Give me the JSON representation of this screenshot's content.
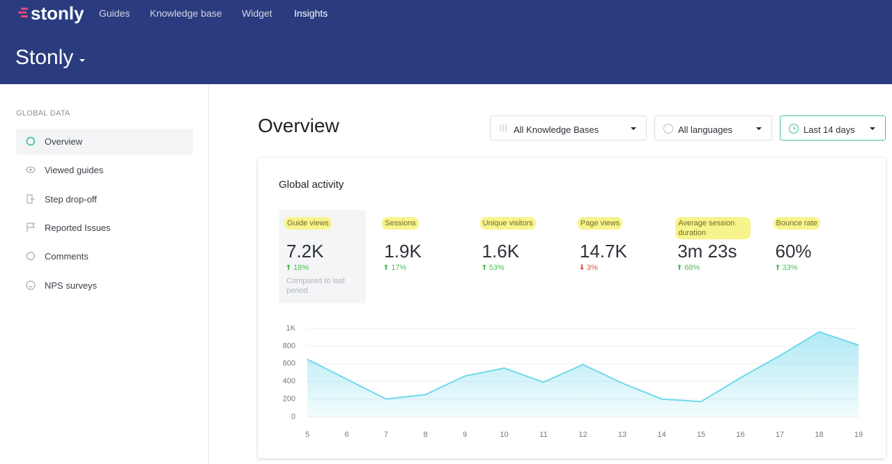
{
  "header": {
    "logo": "stonly",
    "nav": [
      "Guides",
      "Knowledge base",
      "Widget",
      "Insights"
    ],
    "active_nav": 3,
    "workspace": "Stonly"
  },
  "sidebar": {
    "section": "GLOBAL DATA",
    "items": [
      "Overview",
      "Viewed guides",
      "Step drop-off",
      "Reported Issues",
      "Comments",
      "NPS surveys"
    ],
    "active_item": 0
  },
  "main": {
    "title": "Overview",
    "filters": [
      "All Knowledge Bases",
      "All languages",
      "Last 14 days"
    ]
  },
  "card": {
    "title": "Global activity",
    "note": "Compared to last period",
    "metrics": [
      {
        "label": "Guide views",
        "value": "7.2K",
        "change": "18%",
        "trend": "up"
      },
      {
        "label": "Sessions",
        "value": "1.9K",
        "change": "17%",
        "trend": "up"
      },
      {
        "label": "Unique visitors",
        "value": "1.6K",
        "change": "53%",
        "trend": "up"
      },
      {
        "label": "Page views",
        "value": "14.7K",
        "change": "3%",
        "trend": "down"
      },
      {
        "label": "Average session duration",
        "value": "3m 23s",
        "change": "68%",
        "trend": "up"
      },
      {
        "label": "Bounce rate",
        "value": "60%",
        "change": "33%",
        "trend": "up"
      }
    ]
  },
  "chart_data": {
    "type": "area",
    "x": [
      5,
      6,
      7,
      8,
      9,
      10,
      11,
      12,
      13,
      14,
      15,
      16,
      17,
      18,
      19
    ],
    "values": [
      650,
      425,
      200,
      250,
      460,
      550,
      390,
      590,
      380,
      200,
      170,
      440,
      690,
      960,
      810
    ],
    "color": "#6fd8ec",
    "xlim": [
      5,
      19
    ],
    "xticks": [
      5,
      6,
      7,
      8,
      9,
      10,
      11,
      12,
      13,
      14,
      15,
      16,
      17,
      18,
      19
    ],
    "ylim": [
      0,
      1000
    ],
    "yticks": [
      0,
      200,
      400,
      600,
      800,
      {
        "value": 1000,
        "label": "1K"
      }
    ],
    "grid": true
  }
}
